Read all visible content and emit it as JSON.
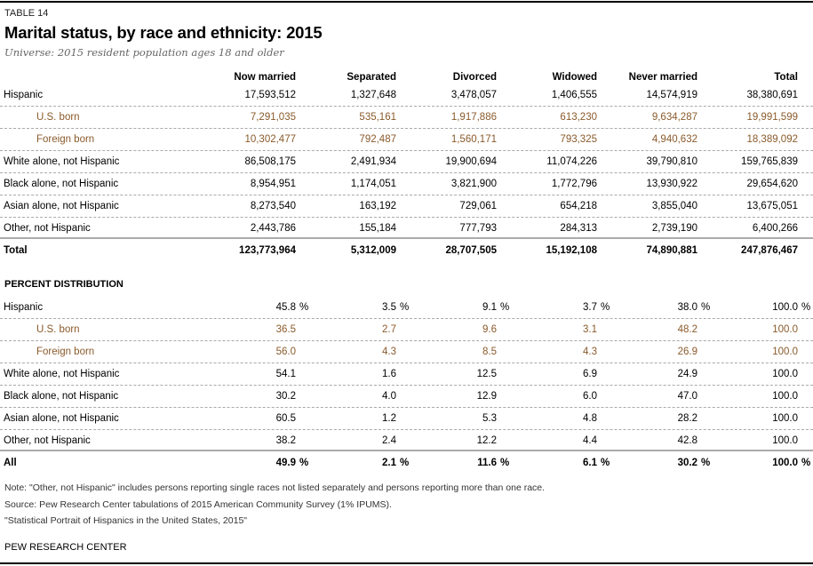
{
  "header": {
    "table_label": "TABLE 14",
    "title": "Marital status, by race and ethnicity: 2015",
    "subtitle": "Universe: 2015 resident population ages 18 and older"
  },
  "columns": [
    "Now married",
    "Separated",
    "Divorced",
    "Widowed",
    "Never married",
    "Total"
  ],
  "counts": [
    {
      "label": "Hispanic",
      "values": [
        "17,593,512",
        "1,327,648",
        "3,478,057",
        "1,406,555",
        "14,574,919",
        "38,380,691"
      ]
    },
    {
      "label": "U.S. born",
      "sub": true,
      "values": [
        "7,291,035",
        "535,161",
        "1,917,886",
        "613,230",
        "9,634,287",
        "19,991,599"
      ]
    },
    {
      "label": "Foreign born",
      "sub": true,
      "values": [
        "10,302,477",
        "792,487",
        "1,560,171",
        "793,325",
        "4,940,632",
        "18,389,092"
      ]
    },
    {
      "label": "White alone, not Hispanic",
      "values": [
        "86,508,175",
        "2,491,934",
        "19,900,694",
        "11,074,226",
        "39,790,810",
        "159,765,839"
      ]
    },
    {
      "label": "Black alone, not Hispanic",
      "values": [
        "8,954,951",
        "1,174,051",
        "3,821,900",
        "1,772,796",
        "13,930,922",
        "29,654,620"
      ]
    },
    {
      "label": "Asian alone, not Hispanic",
      "values": [
        "8,273,540",
        "163,192",
        "729,061",
        "654,218",
        "3,855,040",
        "13,675,051"
      ]
    },
    {
      "label": "Other, not Hispanic",
      "values": [
        "2,443,786",
        "155,184",
        "777,793",
        "284,313",
        "2,739,190",
        "6,400,266"
      ]
    },
    {
      "label": "Total",
      "total": true,
      "values": [
        "123,773,964",
        "5,312,009",
        "28,707,505",
        "15,192,108",
        "74,890,881",
        "247,876,467"
      ]
    }
  ],
  "percent_section_title": "PERCENT DISTRIBUTION",
  "percent_suffix": "%",
  "percents": [
    {
      "label": "Hispanic",
      "pct": true,
      "values": [
        "45.8",
        "3.5",
        "9.1",
        "3.7",
        "38.0",
        "100.0"
      ]
    },
    {
      "label": "U.S. born",
      "sub": true,
      "values": [
        "36.5",
        "2.7",
        "9.6",
        "3.1",
        "48.2",
        "100.0"
      ]
    },
    {
      "label": "Foreign born",
      "sub": true,
      "values": [
        "56.0",
        "4.3",
        "8.5",
        "4.3",
        "26.9",
        "100.0"
      ]
    },
    {
      "label": "White alone, not Hispanic",
      "values": [
        "54.1",
        "1.6",
        "12.5",
        "6.9",
        "24.9",
        "100.0"
      ]
    },
    {
      "label": "Black alone, not Hispanic",
      "values": [
        "30.2",
        "4.0",
        "12.9",
        "6.0",
        "47.0",
        "100.0"
      ]
    },
    {
      "label": "Asian alone, not Hispanic",
      "values": [
        "60.5",
        "1.2",
        "5.3",
        "4.8",
        "28.2",
        "100.0"
      ]
    },
    {
      "label": "Other, not Hispanic",
      "values": [
        "38.2",
        "2.4",
        "12.2",
        "4.4",
        "42.8",
        "100.0"
      ]
    },
    {
      "label": "All",
      "total": true,
      "pct": true,
      "values": [
        "49.9",
        "2.1",
        "11.6",
        "6.1",
        "30.2",
        "100.0"
      ]
    }
  ],
  "notes": [
    "Note: \"Other, not Hispanic\" includes persons reporting single races not listed separately and persons reporting more than one race.",
    "Source: Pew Research Center tabulations of 2015 American Community Survey (1% IPUMS).",
    "\"Statistical Portrait of Hispanics in the United States, 2015\""
  ],
  "footer": "PEW RESEARCH CENTER",
  "colors": {
    "subrow_text": "#8a5a2b",
    "rule": "#aaaaaa"
  }
}
